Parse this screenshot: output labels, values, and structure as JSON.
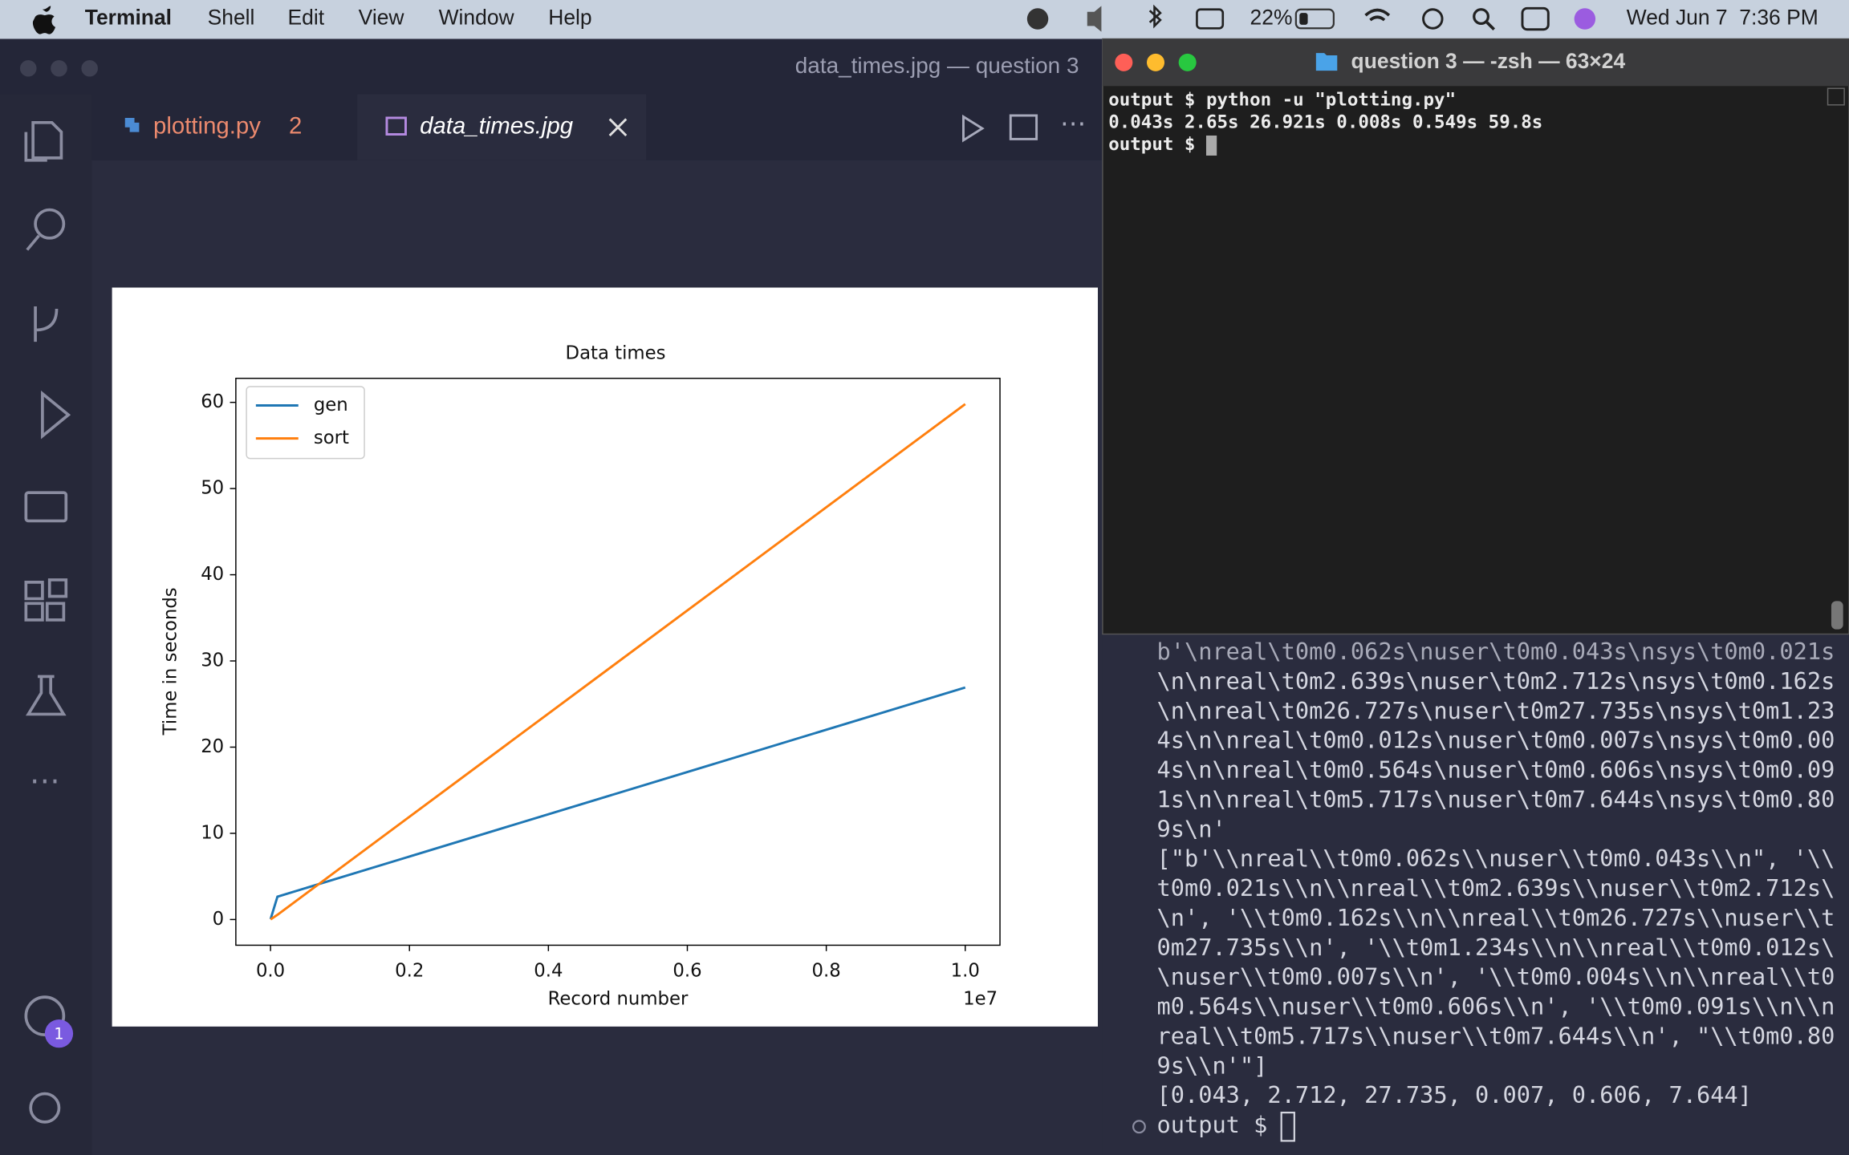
{
  "menu_bar": {
    "items": [
      "Terminal",
      "Shell",
      "Edit",
      "View",
      "Window",
      "Help"
    ],
    "battery": "22%",
    "clock": "Wed Jun 7  7:36 PM"
  },
  "editor": {
    "window_title": "data_times.jpg — question 3",
    "tabs": [
      {
        "label": "plotting.py",
        "badge": "2"
      },
      {
        "label": "data_times.jpg"
      }
    ],
    "account_badge": "1"
  },
  "chart_data": {
    "type": "line",
    "title": "Data times",
    "x_label": "Record number",
    "y_label": "Time in seconds",
    "x_offset_label": "1e7",
    "x": [
      1000,
      100000,
      10000000
    ],
    "series": [
      {
        "name": "gen",
        "color": "#1f77b4",
        "values": [
          0.043,
          2.65,
          26.921
        ]
      },
      {
        "name": "sort",
        "color": "#ff7f0e",
        "values": [
          0.008,
          0.549,
          59.8
        ]
      }
    ],
    "xlim": [
      -498950,
      10499950
    ],
    "xticks": [
      {
        "value": 0,
        "label": "0.0"
      },
      {
        "value": 2000000,
        "label": "0.2"
      },
      {
        "value": 4000000,
        "label": "0.4"
      },
      {
        "value": 6000000,
        "label": "0.6"
      },
      {
        "value": 8000000,
        "label": "0.8"
      },
      {
        "value": 10000000,
        "label": "1.0"
      }
    ],
    "ylim": [
      -2.982,
      62.79
    ],
    "yticks": [
      0,
      10,
      20,
      30,
      40,
      50,
      60
    ],
    "legend": "upper left",
    "grid": false
  },
  "terminal_window": {
    "title": "question 3 — -zsh — 63×24",
    "lines": [
      "output $ python -u \"plotting.py\"",
      "0.043s 2.65s 26.921s 0.008s 0.549s 59.8s",
      "output $ "
    ]
  },
  "panel_terminal": {
    "lines": [
      "b'\\nreal\\t0m0.062s\\nuser\\t0m0.043s\\nsys\\t0m0.021s",
      "\\n\\nreal\\t0m2.639s\\nuser\\t0m2.712s\\nsys\\t0m0.162s",
      "\\n\\nreal\\t0m26.727s\\nuser\\t0m27.735s\\nsys\\t0m1.23",
      "4s\\n\\nreal\\t0m0.012s\\nuser\\t0m0.007s\\nsys\\t0m0.00",
      "4s\\n\\nreal\\t0m0.564s\\nuser\\t0m0.606s\\nsys\\t0m0.09",
      "1s\\n\\nreal\\t0m5.717s\\nuser\\t0m7.644s\\nsys\\t0m0.80",
      "9s\\n'",
      "[\"b'\\\\nreal\\\\t0m0.062s\\\\nuser\\\\t0m0.043s\\\\n\", '\\\\",
      "t0m0.021s\\\\n\\\\nreal\\\\t0m2.639s\\\\nuser\\\\t0m2.712s\\",
      "\\n', '\\\\t0m0.162s\\\\n\\\\nreal\\\\t0m26.727s\\\\nuser\\\\t",
      "0m27.735s\\\\n', '\\\\t0m1.234s\\\\n\\\\nreal\\\\t0m0.012s\\",
      "\\nuser\\\\t0m0.007s\\\\n', '\\\\t0m0.004s\\\\n\\\\nreal\\\\t0",
      "m0.564s\\\\nuser\\\\t0m0.606s\\\\n', '\\\\t0m0.091s\\\\n\\\\n",
      "real\\\\t0m5.717s\\\\nuser\\\\t0m7.644s\\\\n', \"\\\\t0m0.80",
      "9s\\\\n'\"]",
      "[0.043, 2.712, 27.735, 0.007, 0.606, 7.644]",
      "output $ "
    ]
  }
}
